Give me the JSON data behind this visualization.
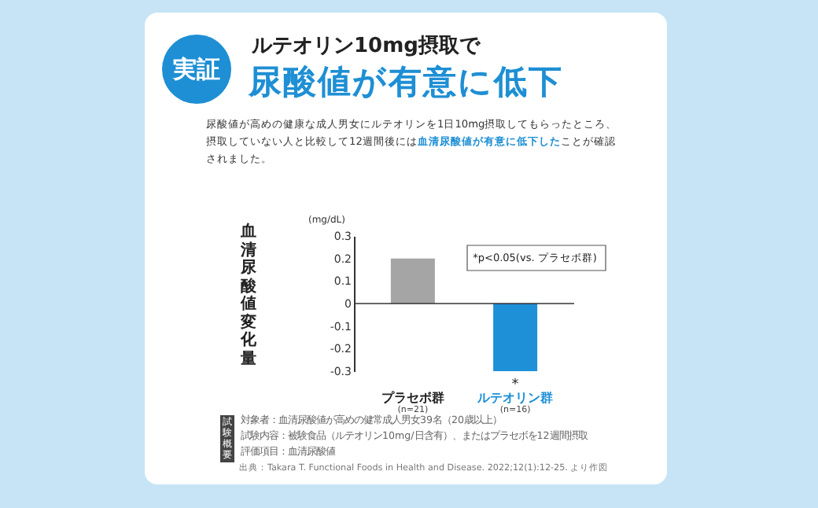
{
  "chart_data": {
    "type": "bar",
    "title": "尿酸値が有意に低下",
    "subtitle": "ルテオリン10mg摂取で",
    "ylabel": "血清尿酸値変化量",
    "categories": [
      "プラセボ群",
      "ルテオリン群"
    ],
    "values": [
      0.2,
      -0.3
    ],
    "colors": [
      "#a5a5a5",
      "#1e90d8"
    ],
    "ref_lines": [
      {
        "axis": "y",
        "value": 0,
        "color": "#333333"
      }
    ],
    "ylim": [
      -0.3,
      0.3
    ],
    "yticks": [
      -0.3,
      -0.2,
      -0.1,
      0,
      0.1,
      0.2,
      0.3
    ],
    "grid": false,
    "annotations": [
      "実証",
      "尿酸値が高めの健康な成人男女にルテオリンを1日10mg摂取してもらったところ、摂取していない人と比較して12週間後には",
      "血清尿酸値が有意に低下した",
      "ことが確認されました。",
      "(mg/dL)",
      "*p<0.05(vs. プラセボ群)",
      {
        "text": "*",
        "x": "ルテオリン群",
        "y": -0.3
      },
      "(n=21)",
      "(n=16)",
      "試験概要",
      "対象者：血清尿酸値が高めの健常成人男女39名（20歳以上）",
      "試験内容：被験食品（ルテオリン10mg/日含有）、またはプラセボを12週間摂取",
      "評価項目：血清尿酸値",
      "出典：Takara T. Functional Foods in Health and Disease. 2022;12(1):12-25. より作図"
    ]
  }
}
